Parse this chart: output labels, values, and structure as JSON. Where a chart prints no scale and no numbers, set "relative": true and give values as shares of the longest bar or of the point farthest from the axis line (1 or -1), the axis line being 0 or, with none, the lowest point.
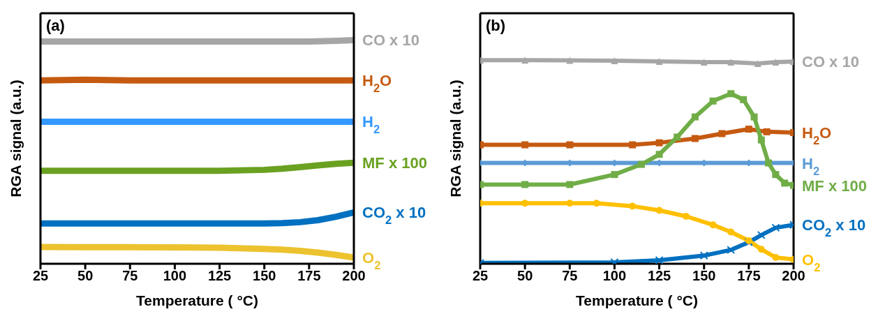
{
  "chart_data": [
    {
      "type": "line",
      "title": "(a)",
      "xlabel": "Temperature ( °C)",
      "ylabel": "RGA signal (a.u.)",
      "relative": true,
      "xlim": [
        25,
        200
      ],
      "xticks": [
        25,
        50,
        75,
        100,
        125,
        150,
        175,
        200
      ],
      "marker": "none",
      "line_style": "solid",
      "series": [
        {
          "name": "CO x 10",
          "color": "#a6a6a6",
          "x": [
            25,
            50,
            75,
            100,
            125,
            150,
            175,
            190,
            200
          ],
          "values": [
            0.994,
            0.994,
            0.994,
            0.994,
            0.994,
            0.994,
            0.994,
            0.997,
            1.0
          ]
        },
        {
          "name": "H$_{2}$O",
          "color": "#c55a11",
          "x": [
            25,
            50,
            75,
            100,
            125,
            150,
            175,
            200
          ],
          "values": [
            0.82,
            0.823,
            0.82,
            0.82,
            0.82,
            0.82,
            0.82,
            0.82
          ]
        },
        {
          "name": "H$_{2}$",
          "color": "#3399ff",
          "x": [
            25,
            50,
            75,
            100,
            125,
            150,
            175,
            200
          ],
          "values": [
            0.635,
            0.635,
            0.635,
            0.635,
            0.635,
            0.635,
            0.635,
            0.635
          ]
        },
        {
          "name": "MF x 100",
          "color": "#6aa121",
          "x": [
            25,
            50,
            75,
            100,
            125,
            150,
            160,
            170,
            180,
            190,
            200
          ],
          "values": [
            0.416,
            0.416,
            0.416,
            0.416,
            0.416,
            0.42,
            0.425,
            0.432,
            0.44,
            0.447,
            0.452
          ]
        },
        {
          "name": "CO$_{2}$ x 10",
          "color": "#0070c0",
          "x": [
            25,
            50,
            75,
            100,
            125,
            150,
            160,
            170,
            180,
            190,
            200
          ],
          "values": [
            0.18,
            0.18,
            0.18,
            0.18,
            0.18,
            0.18,
            0.182,
            0.186,
            0.195,
            0.21,
            0.23
          ]
        },
        {
          "name": "O$_{2}$",
          "color": "#ecc22e",
          "x": [
            25,
            50,
            75,
            100,
            125,
            150,
            160,
            170,
            180,
            190,
            200
          ],
          "values": [
            0.075,
            0.074,
            0.074,
            0.073,
            0.072,
            0.066,
            0.063,
            0.058,
            0.05,
            0.04,
            0.028
          ]
        }
      ]
    },
    {
      "type": "line",
      "title": "(b)",
      "xlabel": "Temperature ( °C)",
      "ylabel": "RGA signal (a.u.)",
      "relative": true,
      "xlim": [
        25,
        200
      ],
      "xticks": [
        25,
        50,
        75,
        100,
        125,
        150,
        175,
        200
      ],
      "line_style": "solid",
      "series": [
        {
          "name": "CO x 10",
          "color": "#a6a6a6",
          "marker": "triangle",
          "x": [
            25,
            50,
            75,
            100,
            125,
            150,
            165,
            180,
            190,
            200
          ],
          "values": [
            1.0,
            1.0,
            0.999,
            0.997,
            0.994,
            0.99,
            0.99,
            0.983,
            0.99,
            0.993
          ]
        },
        {
          "name": "H$_{2}$O",
          "color": "#c55a11",
          "marker": "square",
          "x": [
            25,
            50,
            75,
            110,
            125,
            145,
            160,
            175,
            185,
            200
          ],
          "values": [
            0.584,
            0.584,
            0.584,
            0.584,
            0.594,
            0.615,
            0.639,
            0.661,
            0.648,
            0.644
          ]
        },
        {
          "name": "H$_{2}$",
          "color": "#5b9bd5",
          "marker": "diamond",
          "x": [
            25,
            50,
            75,
            100,
            125,
            150,
            175,
            200
          ],
          "values": [
            0.495,
            0.495,
            0.495,
            0.495,
            0.495,
            0.495,
            0.495,
            0.495
          ]
        },
        {
          "name": "MF x 100",
          "color": "#70ad47",
          "marker": "square",
          "x": [
            25,
            50,
            75,
            100,
            115,
            125,
            135,
            145,
            155,
            165,
            172,
            178,
            182,
            186,
            190,
            195,
            200
          ],
          "values": [
            0.389,
            0.389,
            0.389,
            0.438,
            0.488,
            0.537,
            0.622,
            0.721,
            0.799,
            0.835,
            0.806,
            0.721,
            0.608,
            0.495,
            0.438,
            0.396,
            0.385
          ]
        },
        {
          "name": "CO$_{2}$ x 10",
          "color": "#0070c0",
          "marker": "cross",
          "x": [
            25,
            100,
            125,
            150,
            165,
            175,
            182,
            190,
            200
          ],
          "values": [
            0.004,
            0.007,
            0.017,
            0.04,
            0.068,
            0.106,
            0.141,
            0.177,
            0.191
          ]
        },
        {
          "name": "O$_{2}$",
          "color": "#ffc000",
          "marker": "circle",
          "x": [
            25,
            50,
            75,
            90,
            110,
            125,
            140,
            155,
            165,
            175,
            182,
            190,
            200
          ],
          "values": [
            0.297,
            0.297,
            0.297,
            0.297,
            0.283,
            0.262,
            0.233,
            0.191,
            0.156,
            0.113,
            0.071,
            0.031,
            0.021
          ]
        }
      ]
    }
  ]
}
